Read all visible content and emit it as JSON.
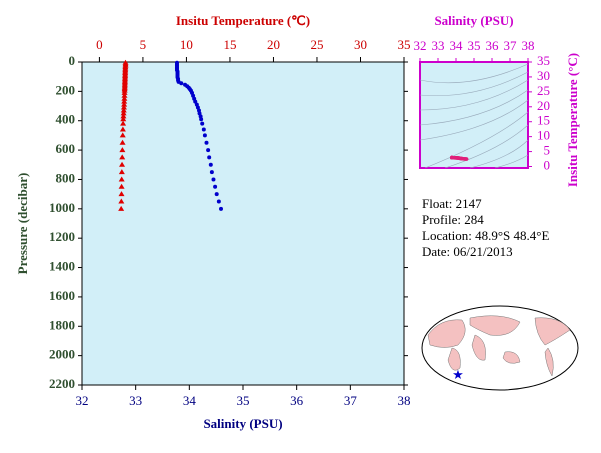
{
  "chart_data": [
    {
      "type": "profile",
      "x2label": "Insitu Temperature (℃)",
      "x2lim": [
        -2,
        35
      ],
      "x2ticks": [
        0,
        5,
        10,
        15,
        20,
        25,
        30,
        35
      ],
      "xlabel": "Salinity (PSU)",
      "xlim": [
        32,
        38
      ],
      "xticks": [
        32,
        33,
        34,
        35,
        36,
        37,
        38
      ],
      "ylabel": "Pressure (decibar)",
      "ylim": [
        0,
        2200
      ],
      "yticks": [
        0,
        200,
        400,
        600,
        800,
        1000,
        1200,
        1400,
        1600,
        1800,
        2000,
        2200
      ],
      "y": [
        5,
        15,
        25,
        35,
        45,
        55,
        65,
        75,
        85,
        95,
        105,
        115,
        125,
        135,
        145,
        155,
        165,
        175,
        185,
        195,
        210,
        230,
        250,
        270,
        290,
        310,
        330,
        350,
        370,
        390,
        420,
        460,
        500,
        550,
        600,
        650,
        700,
        750,
        800,
        850,
        900,
        950,
        1000
      ],
      "series": [
        {
          "color": "#e00000",
          "marker": "triangle",
          "axis": "x2",
          "values": [
            3.0,
            3.0,
            3.0,
            2.98,
            2.98,
            2.97,
            2.97,
            2.96,
            2.96,
            2.95,
            2.95,
            2.94,
            2.94,
            2.93,
            2.93,
            2.92,
            2.92,
            2.91,
            2.9,
            2.9,
            2.89,
            2.88,
            2.87,
            2.85,
            2.84,
            2.82,
            2.8,
            2.78,
            2.76,
            2.74,
            2.72,
            2.7,
            2.68,
            2.66,
            2.64,
            2.62,
            2.6,
            2.58,
            2.56,
            2.55,
            2.54,
            2.52,
            2.5
          ]
        },
        {
          "color": "#0000cc",
          "marker": "circle",
          "values": [
            33.77,
            33.77,
            33.77,
            33.77,
            33.77,
            33.77,
            33.78,
            33.78,
            33.78,
            33.78,
            33.78,
            33.79,
            33.79,
            33.8,
            33.85,
            33.92,
            33.96,
            33.99,
            34.01,
            34.03,
            34.05,
            34.07,
            34.09,
            34.11,
            34.14,
            34.16,
            34.18,
            34.19,
            34.21,
            34.22,
            34.24,
            34.27,
            34.29,
            34.32,
            34.35,
            34.37,
            34.4,
            34.42,
            34.45,
            34.48,
            34.51,
            34.55,
            34.59
          ]
        }
      ]
    },
    {
      "type": "ts",
      "color": "#e0207a",
      "xlabel": "Salinity (PSU)",
      "xlim": [
        32,
        38
      ],
      "xticks": [
        32,
        33,
        34,
        35,
        36,
        37,
        38
      ],
      "ylabel": "Insitu Temperature (°C)",
      "ylim": [
        -0.5,
        35
      ],
      "yticks": [
        0,
        5,
        10,
        15,
        20,
        25,
        30,
        35
      ]
    }
  ],
  "info": [
    "Float:  2147",
    "Profile:  284",
    "Location:  48.9°S  48.4°E",
    "Date:  06/21/2013"
  ]
}
